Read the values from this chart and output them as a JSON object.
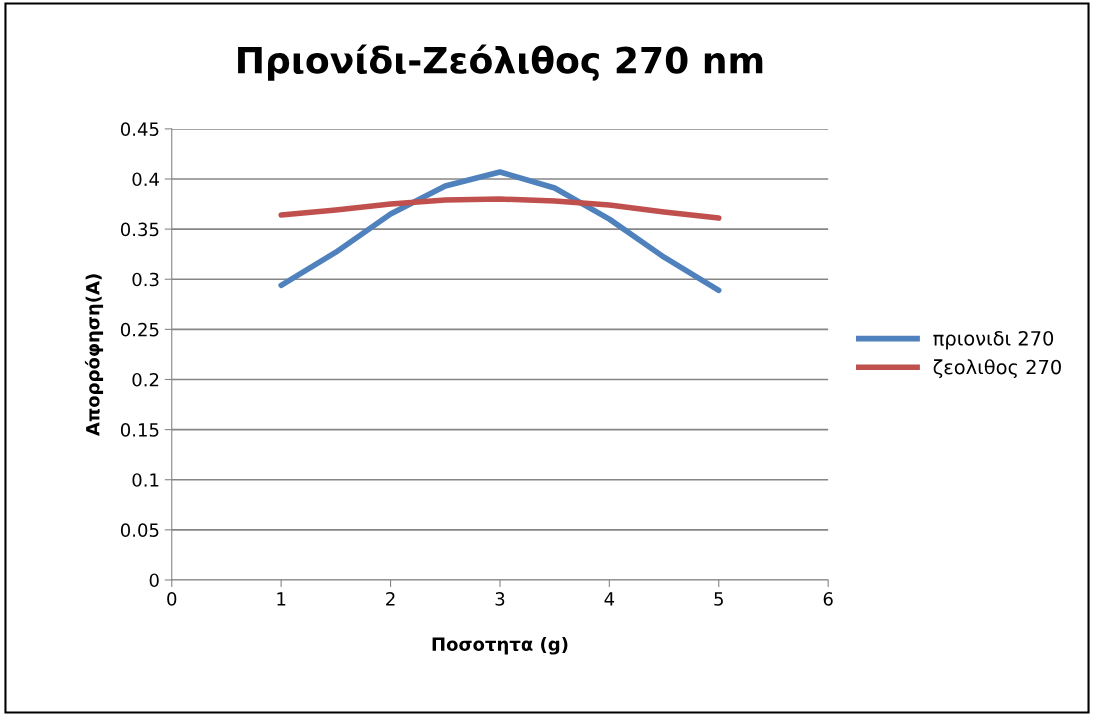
{
  "chart_data": {
    "type": "line",
    "title": "Πριονίδι-Ζεόλιθος 270 nm",
    "xlabel": "Ποσοτητα (g)",
    "ylabel": "Απορρόφηση(A)",
    "x": [
      1,
      1.5,
      2,
      2.5,
      3,
      3.5,
      4,
      4.5,
      5
    ],
    "series": [
      {
        "name": "πριονιδι 270",
        "color": "#4f81bd",
        "values": [
          0.294,
          0.327,
          0.365,
          0.393,
          0.407,
          0.391,
          0.36,
          0.322,
          0.289
        ]
      },
      {
        "name": "ζεολιθος 270",
        "color": "#c0504d",
        "values": [
          0.364,
          0.369,
          0.375,
          0.379,
          0.38,
          0.378,
          0.374,
          0.367,
          0.361
        ]
      }
    ],
    "xlim": [
      0,
      6
    ],
    "xticks": [
      0,
      1,
      2,
      3,
      4,
      5,
      6
    ],
    "ylim": [
      0,
      0.45
    ],
    "yticks": [
      0,
      0.05,
      0.1,
      0.15,
      0.2,
      0.25,
      0.3,
      0.35,
      0.4,
      0.45
    ],
    "grid": "y",
    "legend": "right",
    "marker": "none",
    "line_style": "solid"
  }
}
